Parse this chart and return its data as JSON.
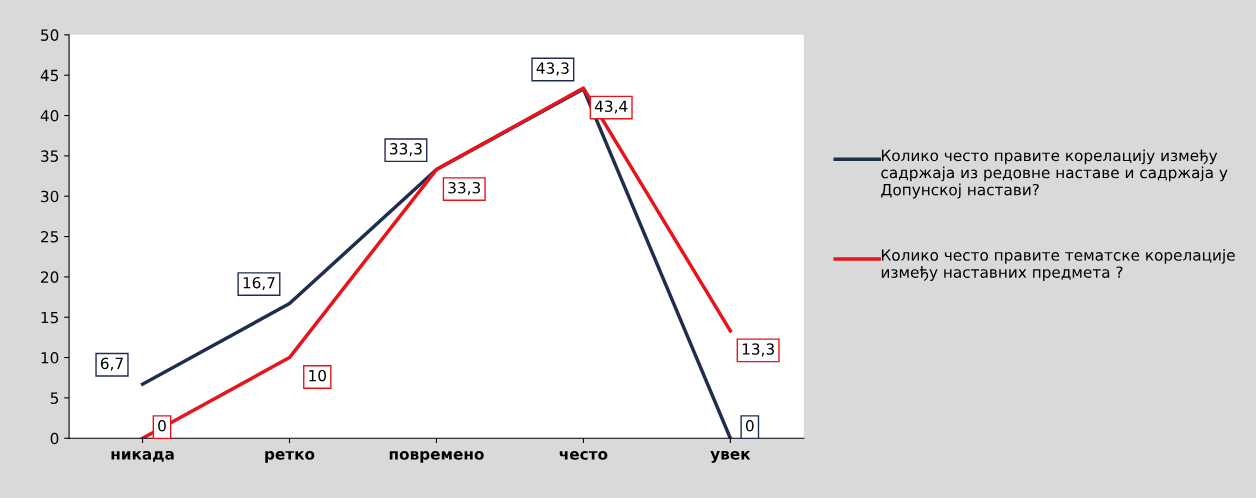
{
  "chart_data": {
    "type": "line",
    "categories": [
      "никада",
      "ретко",
      "повремено",
      "често",
      "увек"
    ],
    "series": [
      {
        "name": "Колико често правите корелацију између садржаја из редовне наставе и садржаја у Допунској настави?",
        "color": "#1f2d4e",
        "values": [
          6.7,
          16.7,
          33.3,
          43.3,
          0
        ],
        "value_labels": [
          "6,7",
          "16,7",
          "33,3",
          "43,3",
          "0"
        ]
      },
      {
        "name": "Колико често правите тематске корелације између наставних предмета ?",
        "color": "#e8141b",
        "values": [
          0,
          10,
          33.3,
          43.4,
          13.3
        ],
        "value_labels": [
          "0",
          "10",
          "33,3",
          "43,4",
          "13,3"
        ]
      }
    ],
    "ylim": [
      0,
      50
    ],
    "yticks": [
      0,
      5,
      10,
      15,
      20,
      25,
      30,
      35,
      40,
      45,
      50
    ],
    "grid": false,
    "legend": "right",
    "marker": "none",
    "line_style": "solid"
  }
}
